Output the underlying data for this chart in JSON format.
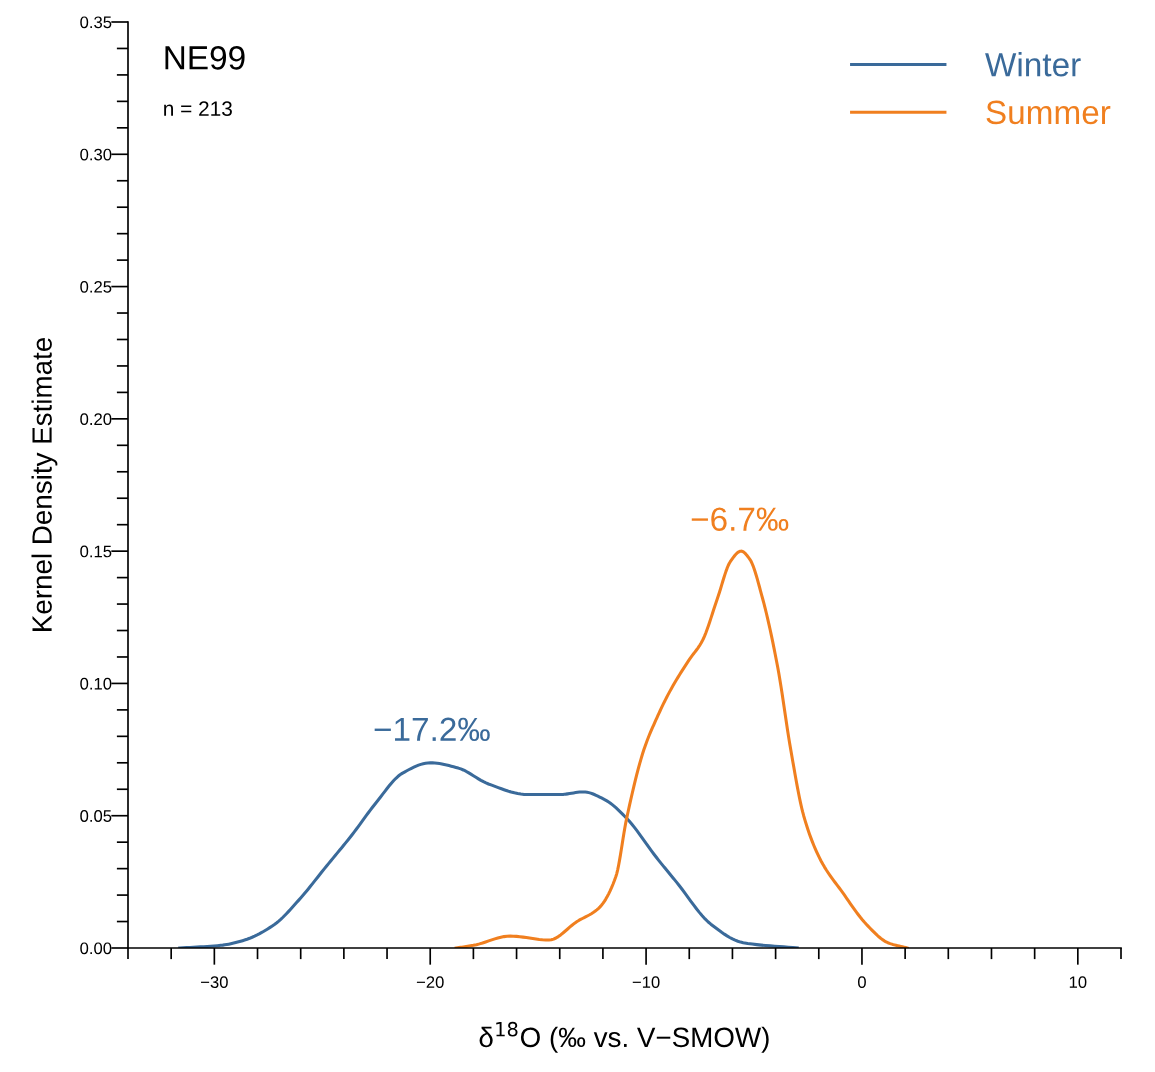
{
  "chart_data": {
    "type": "line",
    "ylabel": "Kernel Density Estimate",
    "xlabel": "δ$^{18}$O (‰ vs. V−SMOW)",
    "xlim": [
      -34,
      12
    ],
    "ylim": [
      0,
      0.35
    ],
    "xticks": [
      {
        "value": -34,
        "label": null
      },
      {
        "value": -32,
        "label": null
      },
      {
        "value": -30,
        "label": "−30"
      },
      {
        "value": -28,
        "label": null
      },
      {
        "value": -26,
        "label": null
      },
      {
        "value": -24,
        "label": null
      },
      {
        "value": -22,
        "label": null
      },
      {
        "value": -20,
        "label": "−20"
      },
      {
        "value": -18,
        "label": null
      },
      {
        "value": -16,
        "label": null
      },
      {
        "value": -14,
        "label": null
      },
      {
        "value": -12,
        "label": null
      },
      {
        "value": -10,
        "label": "−10"
      },
      {
        "value": -8,
        "label": null
      },
      {
        "value": -6,
        "label": null
      },
      {
        "value": -4,
        "label": null
      },
      {
        "value": -2,
        "label": null
      },
      {
        "value": 0,
        "label": "0"
      },
      {
        "value": 2,
        "label": null
      },
      {
        "value": 4,
        "label": null
      },
      {
        "value": 6,
        "label": null
      },
      {
        "value": 8,
        "label": null
      },
      {
        "value": 10,
        "label": "10"
      },
      {
        "value": 12,
        "label": null
      }
    ],
    "yticks": [
      {
        "value": 0,
        "label": "0.00"
      },
      {
        "value": 0.01,
        "label": null
      },
      {
        "value": 0.02,
        "label": null
      },
      {
        "value": 0.03,
        "label": null
      },
      {
        "value": 0.04,
        "label": null
      },
      {
        "value": 0.05,
        "label": "0.05"
      },
      {
        "value": 0.06,
        "label": null
      },
      {
        "value": 0.07,
        "label": null
      },
      {
        "value": 0.08,
        "label": null
      },
      {
        "value": 0.09,
        "label": null
      },
      {
        "value": 0.1,
        "label": "0.10"
      },
      {
        "value": 0.11,
        "label": null
      },
      {
        "value": 0.12,
        "label": null
      },
      {
        "value": 0.13,
        "label": null
      },
      {
        "value": 0.14,
        "label": null
      },
      {
        "value": 0.15,
        "label": "0.15"
      },
      {
        "value": 0.16,
        "label": null
      },
      {
        "value": 0.17,
        "label": null
      },
      {
        "value": 0.18,
        "label": null
      },
      {
        "value": 0.19,
        "label": null
      },
      {
        "value": 0.2,
        "label": "0.20"
      },
      {
        "value": 0.21,
        "label": null
      },
      {
        "value": 0.22,
        "label": null
      },
      {
        "value": 0.23,
        "label": null
      },
      {
        "value": 0.24,
        "label": null
      },
      {
        "value": 0.25,
        "label": "0.25"
      },
      {
        "value": 0.26,
        "label": null
      },
      {
        "value": 0.27,
        "label": null
      },
      {
        "value": 0.28,
        "label": null
      },
      {
        "value": 0.29,
        "label": null
      },
      {
        "value": 0.3,
        "label": "0.30"
      },
      {
        "value": 0.31,
        "label": null
      },
      {
        "value": 0.32,
        "label": null
      },
      {
        "value": 0.33,
        "label": null
      },
      {
        "value": 0.34,
        "label": null
      },
      {
        "value": 0.35,
        "label": "0.35"
      }
    ],
    "grid": false,
    "legend": "top right",
    "marker": "none",
    "line_style": "solid",
    "series": [
      {
        "name": "Winter",
        "color": "#3a6a9a",
        "x": [
          -31.6,
          -29.7,
          -28.6,
          -27.2,
          -26.1,
          -24.8,
          -23.6,
          -22.5,
          -21.3,
          -20.0,
          -18.7,
          -17.3,
          -15.5,
          -14.0,
          -12.9,
          -11.9,
          -10.9,
          -9.5,
          -8.6,
          -7.0,
          -5.5,
          -3.0
        ],
        "values": [
          0,
          0.001,
          0.003,
          0.009,
          0.018,
          0.031,
          0.043,
          0.055,
          0.066,
          0.07,
          0.068,
          0.062,
          0.058,
          0.058,
          0.059,
          0.056,
          0.049,
          0.034,
          0.025,
          0.009,
          0.002,
          0
        ]
      },
      {
        "name": "Summer",
        "color": "#f07f1f",
        "x": [
          -18.8,
          -18.0,
          -16.3,
          -14.5,
          -13.2,
          -12.2,
          -11.4,
          -10.9,
          -10.1,
          -9.5,
          -8.9,
          -8.0,
          -7.4,
          -6.7,
          -6.1,
          -5.6,
          -5.2,
          -4.6,
          -3.9,
          -3.3,
          -2.7,
          -1.9,
          -0.9,
          0.2,
          1.2,
          2.1
        ],
        "values": [
          0,
          0.001,
          0.0045,
          0.003,
          0.01,
          0.015,
          0.027,
          0.049,
          0.075,
          0.087,
          0.097,
          0.109,
          0.116,
          0.132,
          0.146,
          0.15,
          0.147,
          0.132,
          0.106,
          0.075,
          0.05,
          0.033,
          0.021,
          0.009,
          0.002,
          0
        ]
      }
    ],
    "annotations": [
      "NE99",
      "n = 213",
      "−17.2‰",
      "−6.7‰"
    ]
  }
}
